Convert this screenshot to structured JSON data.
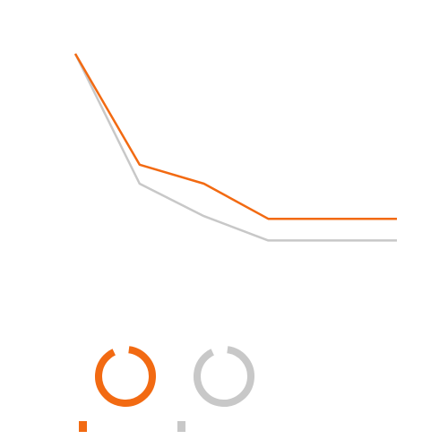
{
  "chart_data": {
    "type": "line",
    "x": [
      0,
      1,
      2,
      3,
      4,
      5
    ],
    "series": [
      {
        "color": "#f26a12",
        "values": [
          100,
          59,
          52,
          39,
          39,
          39
        ]
      },
      {
        "color": "#c8c8c8",
        "values": [
          100,
          52,
          40,
          31,
          31,
          31
        ]
      }
    ],
    "ylim": [
      0,
      100
    ],
    "grid": false,
    "legend": {
      "placement": "bottom-left",
      "markers": [
        {
          "icon": "ring-icon",
          "color": "#f26a12"
        },
        {
          "icon": "ring-icon",
          "color": "#c8c8c8"
        }
      ]
    }
  }
}
